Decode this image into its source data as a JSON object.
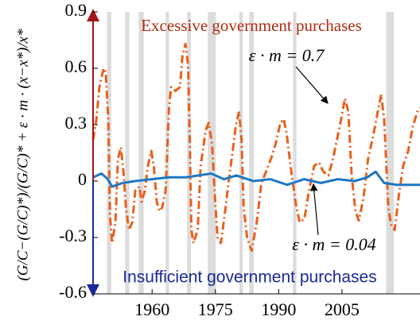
{
  "chart_data": {
    "type": "line",
    "y_label": "(G/C−(G/C)*)/(G/C)* + ε · m · (x−x*)/x*",
    "annotations": {
      "top": "Excessive government purchases",
      "bottom": "Insufficient government purchases"
    },
    "xlim": [
      1946,
      2023.5
    ],
    "xticks": [
      1960,
      1975,
      1990,
      2005
    ],
    "ylim": [
      -0.6,
      0.9
    ],
    "yticks": [
      0.9,
      0.6,
      0.3,
      0,
      -0.3,
      -0.6
    ],
    "shading_color": "#dcdcdc",
    "shading": [
      [
        1949.3,
        1950.3
      ],
      [
        1953.6,
        1954.6
      ],
      [
        1956.8,
        1958.0
      ],
      [
        1963.2,
        1964.0
      ],
      [
        1968.3,
        1969.2
      ],
      [
        1973.2,
        1975.1
      ],
      [
        1980.7,
        1981.5
      ],
      [
        1983.0,
        1984.1
      ],
      [
        1993.4,
        1994.2
      ],
      [
        2015.5,
        2017.3
      ]
    ],
    "series": [
      {
        "name": "ε · m = 0.7",
        "color": "#e8601c",
        "dash": true,
        "x": [
          1946.0,
          1946.8,
          1947.5,
          1948.5,
          1949.0,
          1949.6,
          1950.0,
          1950.5,
          1951.3,
          1951.9,
          1952.6,
          1953.2,
          1953.8,
          1954.5,
          1955.3,
          1956.0,
          1957.0,
          1957.5,
          1958.3,
          1959.0,
          1959.8,
          1960.4,
          1961.1,
          1961.7,
          1962.4,
          1963.2,
          1964.0,
          1964.5,
          1965.5,
          1966.6,
          1967.2,
          1967.9,
          1968.5,
          1968.9,
          1969.3,
          1969.8,
          1970.8,
          1971.5,
          1972.7,
          1973.4,
          1974.2,
          1974.9,
          1975.5,
          1976.3,
          1977.2,
          1978.1,
          1979.1,
          1979.8,
          1980.6,
          1981.2,
          1981.7,
          1982.5,
          1983.6,
          1984.8,
          1985.9,
          1987.0,
          1988.2,
          1989.3,
          1990.4,
          1991.2,
          1991.9,
          1993.1,
          1994.2,
          1995.0,
          1996.1,
          1997.2,
          1998.4,
          1999.5,
          2000.6,
          2001.8,
          2002.9,
          2004.0,
          2004.8,
          2005.7,
          2006.5,
          2007.3,
          2008.2,
          2009.0,
          2010.1,
          2011.2,
          2012.4,
          2013.5,
          2014.3,
          2015.0,
          2016.0,
          2016.7,
          2017.5,
          2018.4,
          2019.5,
          2020.7,
          2021.8,
          2022.9,
          2023.5
        ],
        "values": [
          0.22,
          0.33,
          0.5,
          0.6,
          0.58,
          0.33,
          -0.18,
          -0.33,
          -0.22,
          0.12,
          0.18,
          0.05,
          -0.14,
          -0.26,
          -0.22,
          -0.05,
          -0.03,
          -0.11,
          -0.05,
          0.08,
          0.16,
          0.08,
          -0.11,
          -0.16,
          -0.14,
          -0.05,
          0.39,
          0.5,
          0.48,
          0.5,
          0.67,
          0.73,
          0.62,
          0.25,
          -0.26,
          -0.33,
          -0.26,
          0.08,
          0.27,
          0.31,
          0.2,
          -0.09,
          -0.3,
          -0.33,
          -0.18,
          -0.01,
          0.16,
          0.29,
          0.37,
          0.22,
          -0.14,
          -0.3,
          -0.37,
          -0.22,
          -0.01,
          0.05,
          0.12,
          0.2,
          0.31,
          0.33,
          0.25,
          0.03,
          -0.14,
          -0.22,
          -0.2,
          -0.05,
          0.08,
          0.1,
          0.05,
          0.03,
          0.12,
          0.24,
          0.33,
          0.44,
          0.37,
          0.03,
          -0.16,
          -0.21,
          -0.09,
          0.12,
          0.24,
          0.37,
          0.46,
          0.33,
          -0.14,
          -0.24,
          -0.26,
          -0.09,
          0.08,
          0.16,
          0.29,
          0.37,
          0.39
        ]
      },
      {
        "name": "ε · m = 0.04",
        "color": "#1f77c4",
        "dash": false,
        "x": [
          1946,
          1948,
          1949.5,
          1950.5,
          1953,
          1956,
          1960,
          1964,
          1968,
          1971,
          1974,
          1977,
          1980,
          1984,
          1988,
          1992,
          1996,
          2000,
          2004,
          2008,
          2011,
          2013,
          2015,
          2018,
          2021,
          2023.5
        ],
        "values": [
          0.02,
          0.04,
          0.01,
          -0.03,
          -0.01,
          0.0,
          0.01,
          0.02,
          0.02,
          0.03,
          0.04,
          0.01,
          0.03,
          0.0,
          0.01,
          -0.02,
          0.01,
          -0.01,
          0.01,
          0.0,
          0.02,
          0.05,
          -0.01,
          -0.02,
          -0.02,
          -0.02
        ]
      }
    ]
  }
}
